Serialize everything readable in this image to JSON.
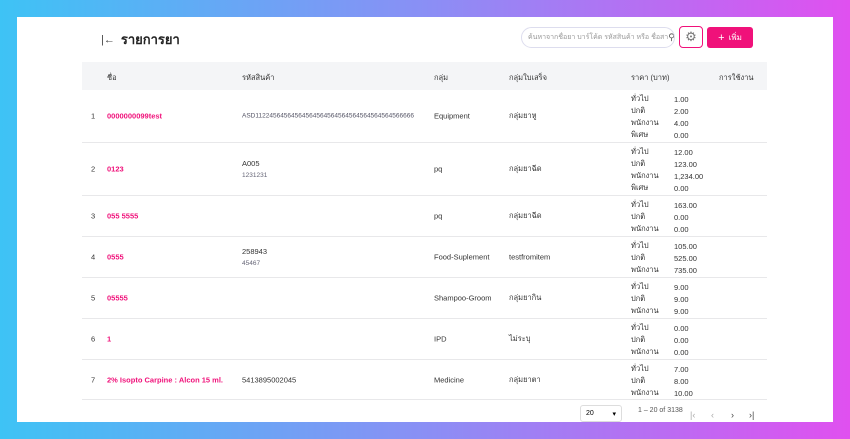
{
  "header": {
    "title": "รายการยา",
    "back_icon": "collapse-left-icon",
    "search_placeholder": "ค้นหาจากชื่อยา บาร์โค้ด รหัสสินค้า หรือ ชื่อสา",
    "add_label": "เพิ่ม",
    "accent": "#f0117a"
  },
  "columns": [
    "ชื่อ",
    "รหัสสินค้า",
    "กลุ่ม",
    "กลุ่มใบเสร็จ",
    "ราคา (บาท)",
    "การใช้งาน"
  ],
  "rows": [
    {
      "idx": "1",
      "name": "0000000099test",
      "code": "ASD11224564564564564564564564564564564564566666",
      "code2": "",
      "group": "Equipment",
      "receipt": "กลุ่มยาหู",
      "prices": [
        [
          "ทั่วไป",
          "1.00"
        ],
        [
          "ปกติ",
          "2.00"
        ],
        [
          "พนักงาน",
          "4.00"
        ],
        [
          "พิเศษ",
          "0.00"
        ]
      ]
    },
    {
      "idx": "2",
      "name": "0123",
      "code": "A005",
      "code2": "1231231",
      "group": "pq",
      "receipt": "กลุ่มยาฉีด",
      "prices": [
        [
          "ทั่วไป",
          "12.00"
        ],
        [
          "ปกติ",
          "123.00"
        ],
        [
          "พนักงาน",
          "1,234.00"
        ],
        [
          "พิเศษ",
          "0.00"
        ]
      ]
    },
    {
      "idx": "3",
      "name": "055 5555",
      "code": "",
      "code2": "",
      "group": "pq",
      "receipt": "กลุ่มยาฉีด",
      "prices": [
        [
          "ทั่วไป",
          "163.00"
        ],
        [
          "ปกติ",
          "0.00"
        ],
        [
          "พนักงาน",
          "0.00"
        ]
      ]
    },
    {
      "idx": "4",
      "name": "0555",
      "code": "258943",
      "code2": "45467",
      "group": "Food-Suplement",
      "receipt": "testfromitem",
      "prices": [
        [
          "ทั่วไป",
          "105.00"
        ],
        [
          "ปกติ",
          "525.00"
        ],
        [
          "พนักงาน",
          "735.00"
        ]
      ]
    },
    {
      "idx": "5",
      "name": "05555",
      "code": "",
      "code2": "",
      "group": "Shampoo-Groom",
      "receipt": "กลุ่มยากิน",
      "prices": [
        [
          "ทั่วไป",
          "9.00"
        ],
        [
          "ปกติ",
          "9.00"
        ],
        [
          "พนักงาน",
          "9.00"
        ]
      ]
    },
    {
      "idx": "6",
      "name": "1",
      "code": "",
      "code2": "",
      "group": "IPD",
      "receipt": "ไม่ระบุ",
      "prices": [
        [
          "ทั่วไป",
          "0.00"
        ],
        [
          "ปกติ",
          "0.00"
        ],
        [
          "พนักงาน",
          "0.00"
        ]
      ]
    },
    {
      "idx": "7",
      "name": "2% Isopto Carpine : Alcon 15 ml.",
      "code": "5413895002045",
      "code2": "",
      "group": "Medicine",
      "receipt": "กลุ่มยาตา",
      "prices": [
        [
          "ทั่วไป",
          "7.00"
        ],
        [
          "ปกติ",
          "8.00"
        ],
        [
          "พนักงาน",
          "10.00"
        ]
      ]
    }
  ],
  "pagination": {
    "page_size": "20",
    "range": "1 – 20 of 3138"
  }
}
